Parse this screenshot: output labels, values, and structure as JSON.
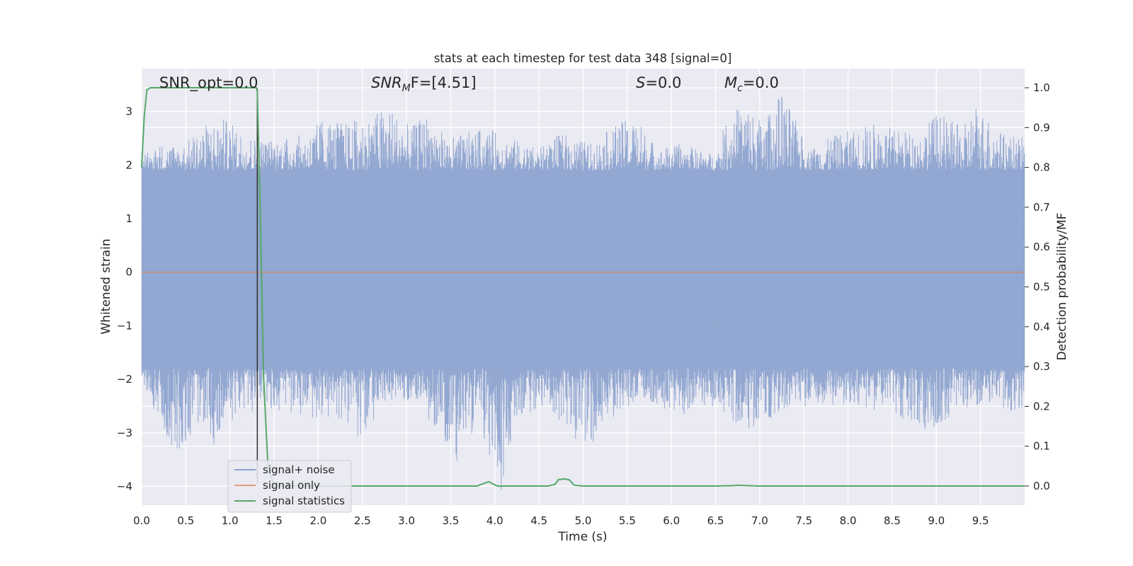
{
  "chart_data": {
    "type": "line",
    "title": "stats at each timestep for test data 348 [signal=0]",
    "xlabel": "Time (s)",
    "ylabel": "Whitened strain",
    "y2label": "Detection probability/MF",
    "xlim": [
      0,
      10
    ],
    "ylim": [
      -4.35,
      3.8
    ],
    "y2lim": [
      -0.048,
      1.048
    ],
    "xticks": [
      0.0,
      0.5,
      1.0,
      1.5,
      2.0,
      2.5,
      3.0,
      3.5,
      4.0,
      4.5,
      5.0,
      5.5,
      6.0,
      6.5,
      7.0,
      7.5,
      8.0,
      8.5,
      9.0,
      9.5
    ],
    "xtick_labels": [
      "0.0",
      "0.5",
      "1.0",
      "1.5",
      "2.0",
      "2.5",
      "3.0",
      "3.5",
      "4.0",
      "4.5",
      "5.0",
      "5.5",
      "6.0",
      "6.5",
      "7.0",
      "7.5",
      "8.0",
      "8.5",
      "9.0",
      "9.5"
    ],
    "yticks": [
      3,
      2,
      1,
      0,
      -1,
      -2,
      -3,
      -4
    ],
    "ytick_labels": [
      "3",
      "2",
      "1",
      "0",
      "−1",
      "−2",
      "−3",
      "−4"
    ],
    "y2ticks": [
      1.0,
      0.9,
      0.8,
      0.7,
      0.6,
      0.5,
      0.4,
      0.3,
      0.2,
      0.1,
      0.0
    ],
    "y2tick_labels": [
      "1.0",
      "0.9",
      "0.8",
      "0.7",
      "0.6",
      "0.5",
      "0.4",
      "0.3",
      "0.2",
      "0.1",
      "0.0"
    ],
    "grid": true,
    "legend_position": "lower-left",
    "annotations": {
      "snr_opt": "SNR_opt=0.0",
      "snr_mf_main": "SNR",
      "snr_mf_sub": "M",
      "snr_mf_tail": "F=[4.51]",
      "s_main": "S",
      "s_tail": "=0.0",
      "mc_main": "M",
      "mc_sub": "c",
      "mc_tail": "=0.0"
    },
    "noise_envelope": {
      "upper_points": [
        [
          0.0,
          2.2
        ],
        [
          0.2,
          2.4
        ],
        [
          0.5,
          2.4
        ],
        [
          0.65,
          2.7
        ],
        [
          0.9,
          2.9
        ],
        [
          1.3,
          2.5
        ],
        [
          1.6,
          2.5
        ],
        [
          1.9,
          2.6
        ],
        [
          2.05,
          2.9
        ],
        [
          2.3,
          2.8
        ],
        [
          2.55,
          2.9
        ],
        [
          2.8,
          3.15
        ],
        [
          3.05,
          2.7
        ],
        [
          3.25,
          3.0
        ],
        [
          3.45,
          2.5
        ],
        [
          3.9,
          2.7
        ],
        [
          4.2,
          2.5
        ],
        [
          4.5,
          2.3
        ],
        [
          4.75,
          2.6
        ],
        [
          5.1,
          2.4
        ],
        [
          5.4,
          2.8
        ],
        [
          5.6,
          2.9
        ],
        [
          5.85,
          2.3
        ],
        [
          6.1,
          2.4
        ],
        [
          6.5,
          2.2
        ],
        [
          6.65,
          3.0
        ],
        [
          6.85,
          3.2
        ],
        [
          7.05,
          2.8
        ],
        [
          7.25,
          3.4
        ],
        [
          7.55,
          2.3
        ],
        [
          7.9,
          2.6
        ],
        [
          8.3,
          2.8
        ],
        [
          8.5,
          2.7
        ],
        [
          8.8,
          2.6
        ],
        [
          9.0,
          3.0
        ],
        [
          9.3,
          2.7
        ],
        [
          9.45,
          3.2
        ],
        [
          9.75,
          2.6
        ],
        [
          10.0,
          2.5
        ]
      ],
      "lower_points": [
        [
          0.0,
          -2.0
        ],
        [
          0.25,
          -3.0
        ],
        [
          0.4,
          -3.4
        ],
        [
          0.7,
          -2.8
        ],
        [
          0.85,
          -3.45
        ],
        [
          1.05,
          -2.7
        ],
        [
          1.3,
          -2.6
        ],
        [
          1.6,
          -2.6
        ],
        [
          1.9,
          -2.8
        ],
        [
          2.2,
          -2.7
        ],
        [
          2.5,
          -3.2
        ],
        [
          2.7,
          -2.5
        ],
        [
          3.05,
          -2.4
        ],
        [
          3.4,
          -3.05
        ],
        [
          3.55,
          -3.6
        ],
        [
          3.8,
          -2.9
        ],
        [
          4.07,
          -4.1
        ],
        [
          4.25,
          -2.7
        ],
        [
          4.6,
          -2.5
        ],
        [
          5.05,
          -3.4
        ],
        [
          5.4,
          -2.6
        ],
        [
          5.75,
          -2.4
        ],
        [
          6.1,
          -2.7
        ],
        [
          6.4,
          -2.5
        ],
        [
          6.85,
          -2.95
        ],
        [
          7.1,
          -2.9
        ],
        [
          7.4,
          -2.6
        ],
        [
          7.8,
          -2.5
        ],
        [
          8.1,
          -2.5
        ],
        [
          8.35,
          -2.6
        ],
        [
          8.7,
          -2.8
        ],
        [
          8.9,
          -3.2
        ],
        [
          9.2,
          -2.6
        ],
        [
          9.55,
          -2.5
        ],
        [
          9.85,
          -2.7
        ],
        [
          10.0,
          -2.5
        ]
      ],
      "dense_band": [
        -1.8,
        1.9
      ]
    },
    "series": [
      {
        "name": "signal+ noise",
        "color": "#8da3cf",
        "axis": "left",
        "style": "dense-noise"
      },
      {
        "name": "signal only",
        "color": "#dd8452",
        "axis": "left",
        "x": [
          0.0,
          10.0
        ],
        "y": [
          0.0,
          0.0
        ]
      },
      {
        "name": "signal statistics",
        "color": "#55a868",
        "axis": "right",
        "x": [
          0.0,
          0.03,
          0.06,
          0.1,
          0.2,
          0.5,
          1.0,
          1.3,
          1.31,
          1.34,
          1.38,
          1.43,
          1.5,
          2.0,
          2.5,
          3.0,
          3.5,
          3.8,
          3.87,
          3.93,
          3.98,
          4.03,
          4.5,
          4.6,
          4.68,
          4.72,
          4.78,
          4.84,
          4.9,
          5.0,
          5.5,
          6.0,
          6.5,
          6.7,
          6.75,
          7.0,
          7.5,
          8.0,
          9.0,
          10.0
        ],
        "y": [
          0.8,
          0.93,
          0.995,
          1.0,
          1.0,
          1.0,
          1.0,
          1.0,
          0.99,
          0.72,
          0.28,
          0.05,
          0.0,
          0.0,
          0.0,
          0.0,
          0.0,
          0.0,
          0.006,
          0.011,
          0.005,
          0.0,
          0.0,
          0.0,
          0.004,
          0.016,
          0.018,
          0.016,
          0.002,
          0.0,
          0.0,
          0.0,
          0.0,
          0.001,
          0.002,
          0.0,
          0.0,
          0.0,
          0.0,
          0.0
        ]
      }
    ],
    "vline": {
      "x": 1.31,
      "color": "#2f2f2f"
    }
  },
  "colors": {
    "plot_background": "#eaeaf2",
    "grid": "#ffffff",
    "noise": "#8da3cf",
    "signal": "#dd8452",
    "stat": "#55a868"
  }
}
